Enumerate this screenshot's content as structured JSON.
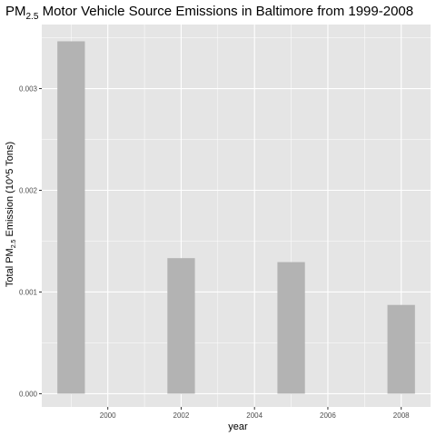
{
  "chart_data": {
    "type": "bar",
    "title_main": "PM",
    "title_sub": "2.5",
    "title_rest": " Motor Vehicle Source Emissions in Baltimore from 1999-2008",
    "xlabel": "year",
    "ylabel_main": "Total PM",
    "ylabel_sub": "2.5",
    "ylabel_rest": " Emission (10^5 Tons)",
    "x": [
      1999,
      2002,
      2005,
      2008
    ],
    "values": [
      0.003465,
      0.001333,
      0.001294,
      0.000873
    ],
    "xlim": [
      1998.2,
      2008.8
    ],
    "ylim": [
      -0.00013,
      0.00363
    ],
    "bar_width_years": 0.75,
    "x_major_ticks": [
      2000,
      2002,
      2004,
      2006,
      2008
    ],
    "x_tick_labels": [
      "2000",
      "2002",
      "2004",
      "2006",
      "2008"
    ],
    "x_minor_ticks": [
      1999,
      2001,
      2003,
      2005,
      2007
    ],
    "y_major_ticks": [
      0,
      0.001,
      0.002,
      0.003
    ],
    "y_tick_labels": [
      "0.000",
      "0.001",
      "0.002",
      "0.003"
    ],
    "y_minor_ticks": [
      0.0005,
      0.0015,
      0.0025,
      0.0035
    ],
    "grid": true,
    "legend": "none",
    "colors": {
      "panel": "#e5e5e5",
      "grid": "#ffffff",
      "bar": "#b3b3b3",
      "tick": "#333333"
    }
  }
}
